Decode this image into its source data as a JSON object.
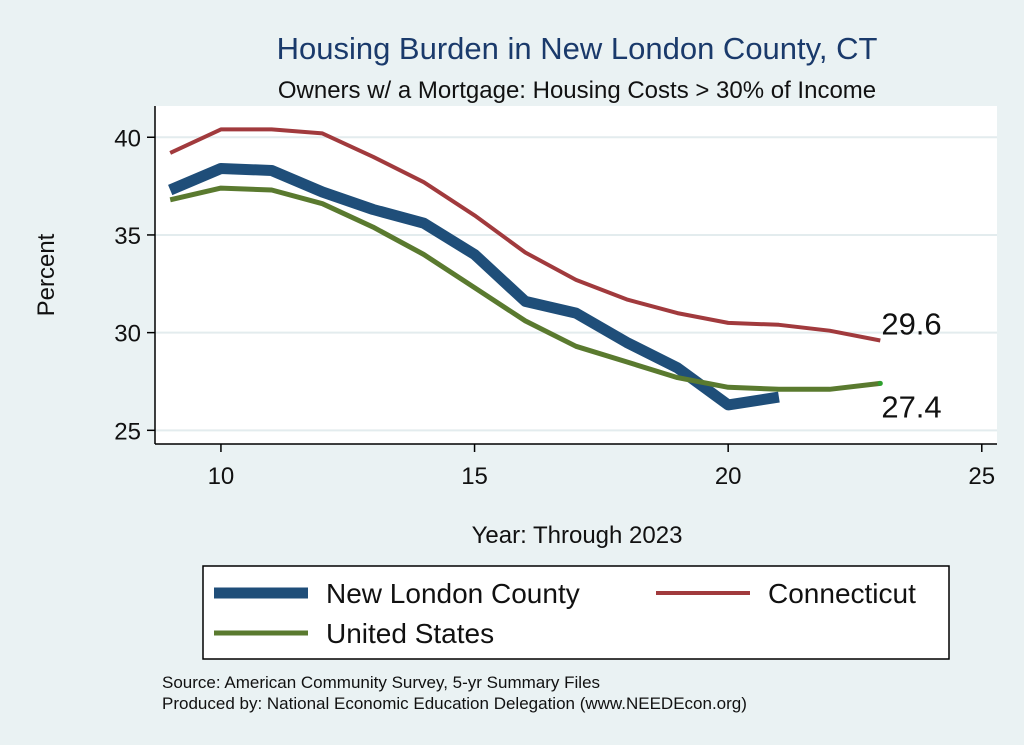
{
  "chart_data": {
    "type": "line",
    "title": "Housing Burden in New London County, CT",
    "subtitle": "Owners w/ a Mortgage: Housing Costs > 30% of Income",
    "xlabel": "Year: Through 2023",
    "ylabel": "Percent",
    "xlim": [
      8.7,
      25.3
    ],
    "ylim": [
      24.3,
      41.6
    ],
    "xticks": [
      10,
      15,
      20,
      25
    ],
    "yticks": [
      25,
      30,
      35,
      40
    ],
    "grid": true,
    "series": [
      {
        "name": "New London County",
        "color": "#1f4e79",
        "width": 11,
        "x": [
          9,
          10,
          11,
          12,
          13,
          14,
          15,
          16,
          17,
          18,
          19,
          20,
          21
        ],
        "values": [
          37.3,
          38.4,
          38.3,
          37.2,
          36.3,
          35.6,
          34.0,
          31.6,
          31.0,
          29.5,
          28.2,
          26.3,
          26.7
        ]
      },
      {
        "name": "Connecticut",
        "color": "#a13a3d",
        "width": 4,
        "x": [
          9,
          10,
          11,
          12,
          13,
          14,
          15,
          16,
          17,
          18,
          19,
          20,
          21,
          22,
          23
        ],
        "values": [
          39.2,
          40.4,
          40.4,
          40.2,
          39.0,
          37.7,
          36.0,
          34.1,
          32.7,
          31.7,
          31.0,
          30.5,
          30.4,
          30.1,
          29.6
        ]
      },
      {
        "name": "United States",
        "color": "#5a7a2f",
        "width": 5,
        "x": [
          9,
          10,
          11,
          12,
          13,
          14,
          15,
          16,
          17,
          18,
          19,
          20,
          21,
          22,
          23
        ],
        "values": [
          36.8,
          37.4,
          37.3,
          36.6,
          35.4,
          34.0,
          32.3,
          30.6,
          29.3,
          28.5,
          27.7,
          27.2,
          27.1,
          27.1,
          27.4
        ]
      }
    ],
    "end_labels": [
      {
        "series": "Connecticut",
        "text": "29.6",
        "value": 29.6
      },
      {
        "series": "United States",
        "text": "27.4",
        "value": 27.4
      }
    ],
    "legend": {
      "placement": "bottom",
      "items": [
        "New London County",
        "Connecticut",
        "United States"
      ]
    },
    "notes": [
      "Source: American Community Survey, 5-yr Summary Files",
      "Produced by: National Economic Education Delegation (www.NEEDEcon.org)"
    ]
  }
}
